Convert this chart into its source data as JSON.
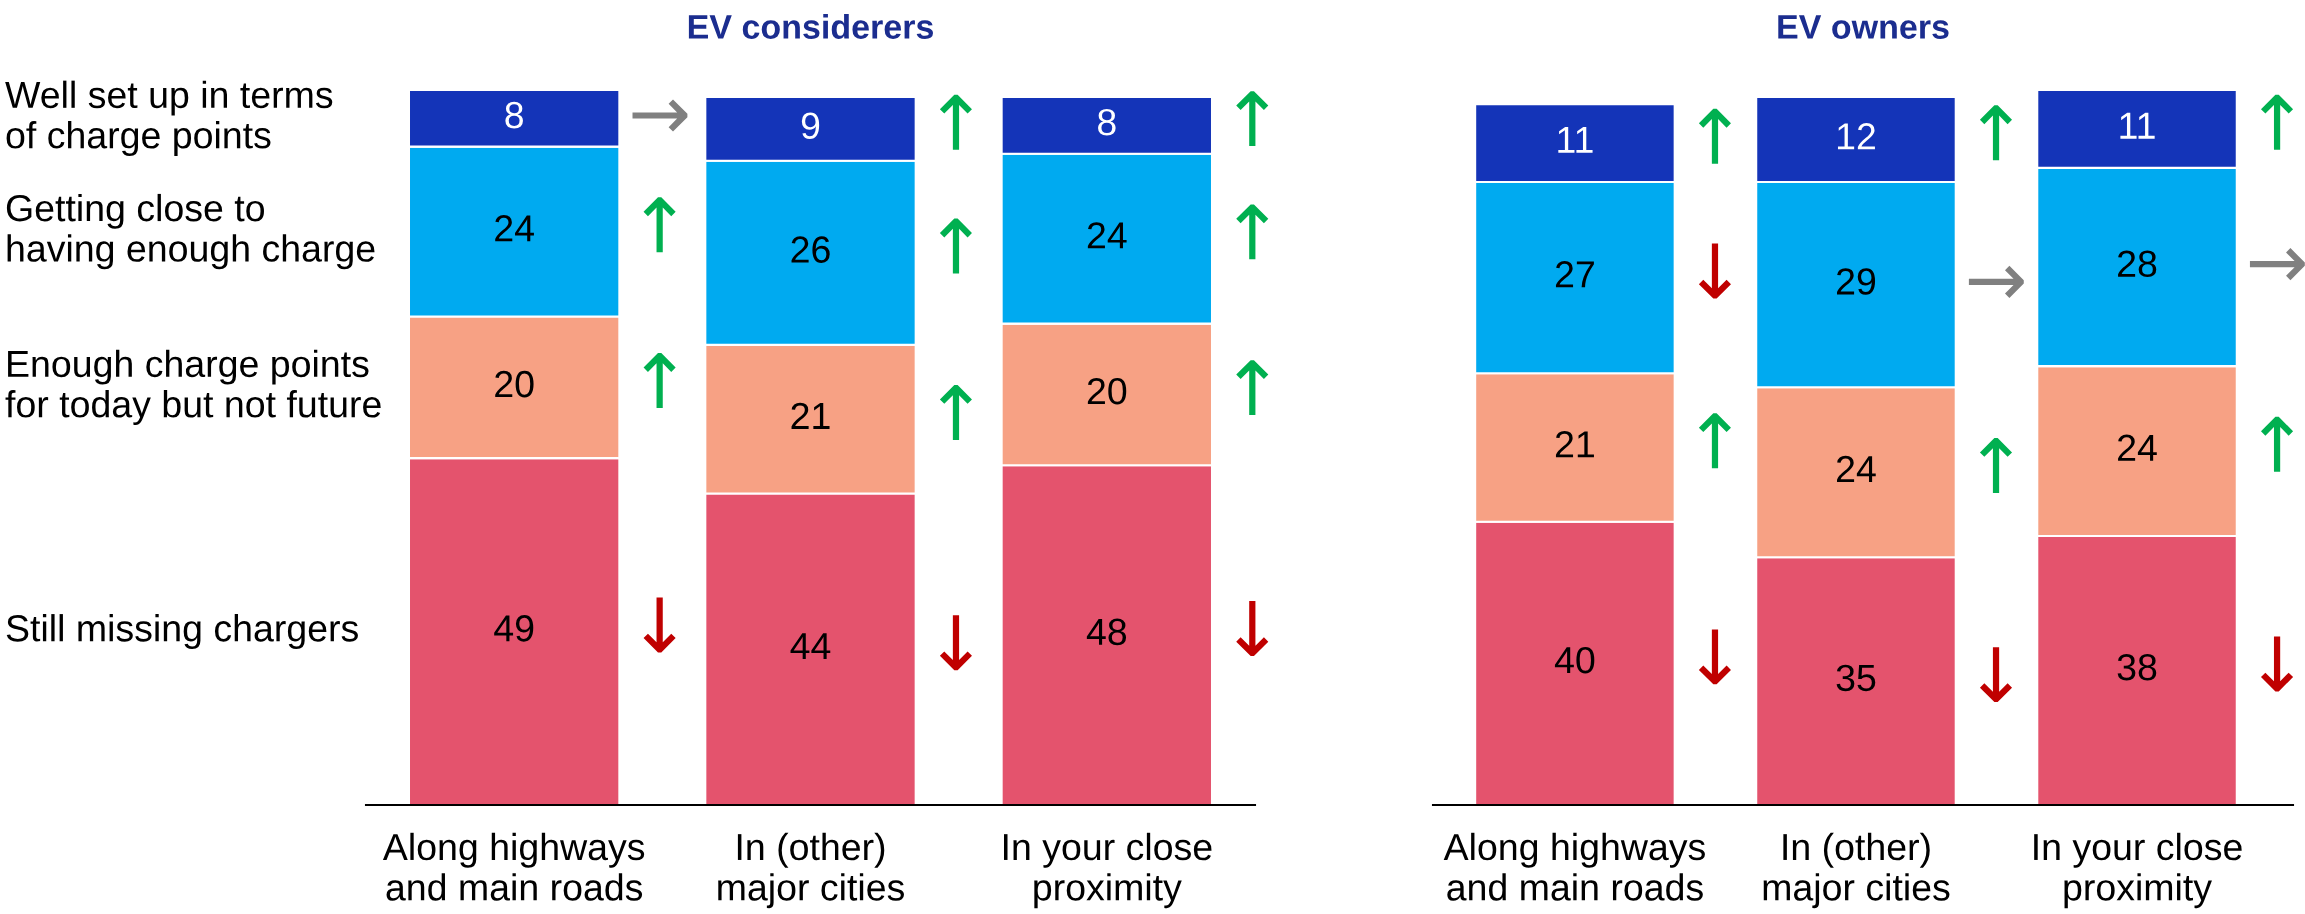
{
  "chart_data": [
    {
      "type": "bar",
      "stacked": true,
      "title": "EV considerers",
      "data_labels": true,
      "legend": "left",
      "tick_labels": "x",
      "categories": [
        "Along highways\nand main roads",
        "In (other)\nmajor cities",
        "In your close\nproximity"
      ],
      "series": [
        {
          "name": "Still missing chargers",
          "color": "#e4536d",
          "values": [
            49,
            44,
            48
          ]
        },
        {
          "name": "Enough charge points\nfor today but not future",
          "color": "#f7a184",
          "values": [
            20,
            21,
            20
          ]
        },
        {
          "name": "Getting close to\nhaving enough charge",
          "color": "#00aaf0",
          "values": [
            24,
            26,
            24
          ]
        },
        {
          "name": "Well set up in terms\nof charge points",
          "color": "#1434b8",
          "values": [
            8,
            9,
            8
          ]
        }
      ],
      "annotations": [
        "↓",
        "↑",
        "↑",
        "→",
        "↓",
        "↑",
        "↑",
        "↑",
        "↓",
        "↑",
        "↑",
        "↑"
      ]
    },
    {
      "type": "bar",
      "stacked": true,
      "title": "EV owners",
      "data_labels": true,
      "tick_labels": "x",
      "categories": [
        "Along highways\nand main roads",
        "In (other)\nmajor cities",
        "In your close\nproximity"
      ],
      "series": [
        {
          "color": "#e4536d",
          "values": [
            40,
            35,
            38
          ]
        },
        {
          "color": "#f7a184",
          "values": [
            21,
            24,
            24
          ]
        },
        {
          "color": "#00aaf0",
          "values": [
            27,
            29,
            28
          ]
        },
        {
          "color": "#1434b8",
          "values": [
            11,
            12,
            11
          ]
        }
      ],
      "annotations": [
        "↓",
        "↑",
        "↓",
        "↑",
        "↓",
        "↑",
        "→",
        "↑",
        "↓",
        "↑",
        "→",
        "↑"
      ]
    }
  ]
}
